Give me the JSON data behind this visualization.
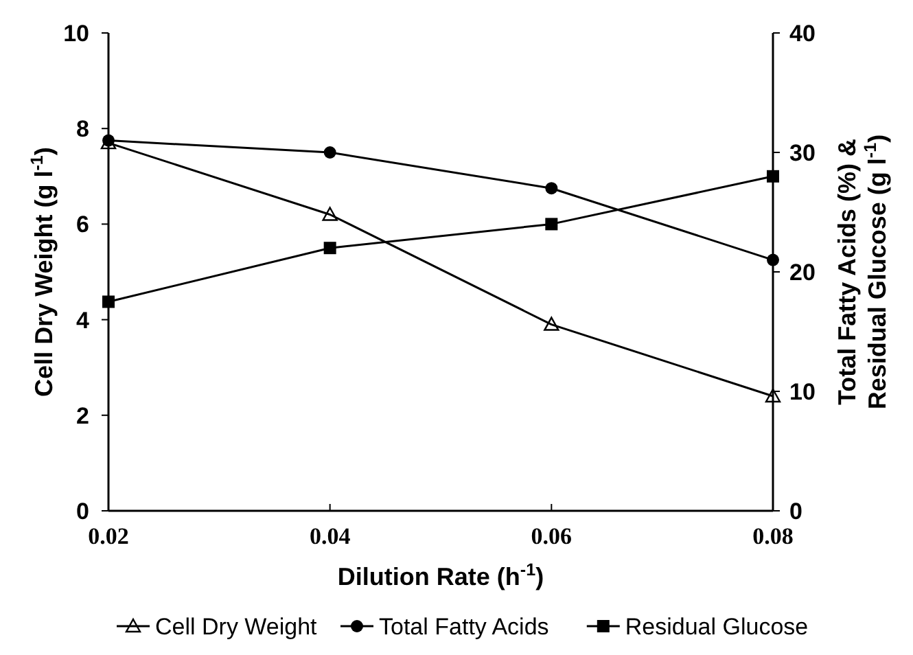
{
  "chart_data": {
    "type": "line",
    "xlabel": "Dilution Rate (h$^{-1}$)",
    "ylabel": "Cell Dry Weight (g l$^{-1}$)",
    "y2label": "Total Fatty Acids (%) &\nResidual Glucose (g l$^{-1}$)",
    "x": [
      0.02,
      0.04,
      0.06,
      0.08
    ],
    "xlim": [
      0.02,
      0.08
    ],
    "xticks": [
      0.02,
      0.04,
      0.06,
      0.08
    ],
    "ylim": [
      0,
      10
    ],
    "yticks": [
      0,
      2,
      4,
      6,
      8,
      10
    ],
    "y2lim": [
      0,
      40
    ],
    "y2ticks": [
      0,
      10,
      20,
      30,
      40
    ],
    "grid": false,
    "legend": "bottom",
    "line_style": "solid",
    "series": [
      {
        "name": "Cell Dry Weight",
        "color": "#000000",
        "marker": "triangle",
        "values": [
          7.7,
          6.2,
          3.9,
          2.4
        ]
      },
      {
        "name": "Total Fatty Acids",
        "color": "#000000",
        "marker": "circle",
        "axis": "y2",
        "values": [
          31,
          30,
          27,
          21
        ]
      },
      {
        "name": "Residual Glucose",
        "color": "#000000",
        "marker": "square",
        "axis": "y2",
        "values": [
          17.5,
          22,
          24,
          28
        ]
      }
    ]
  }
}
